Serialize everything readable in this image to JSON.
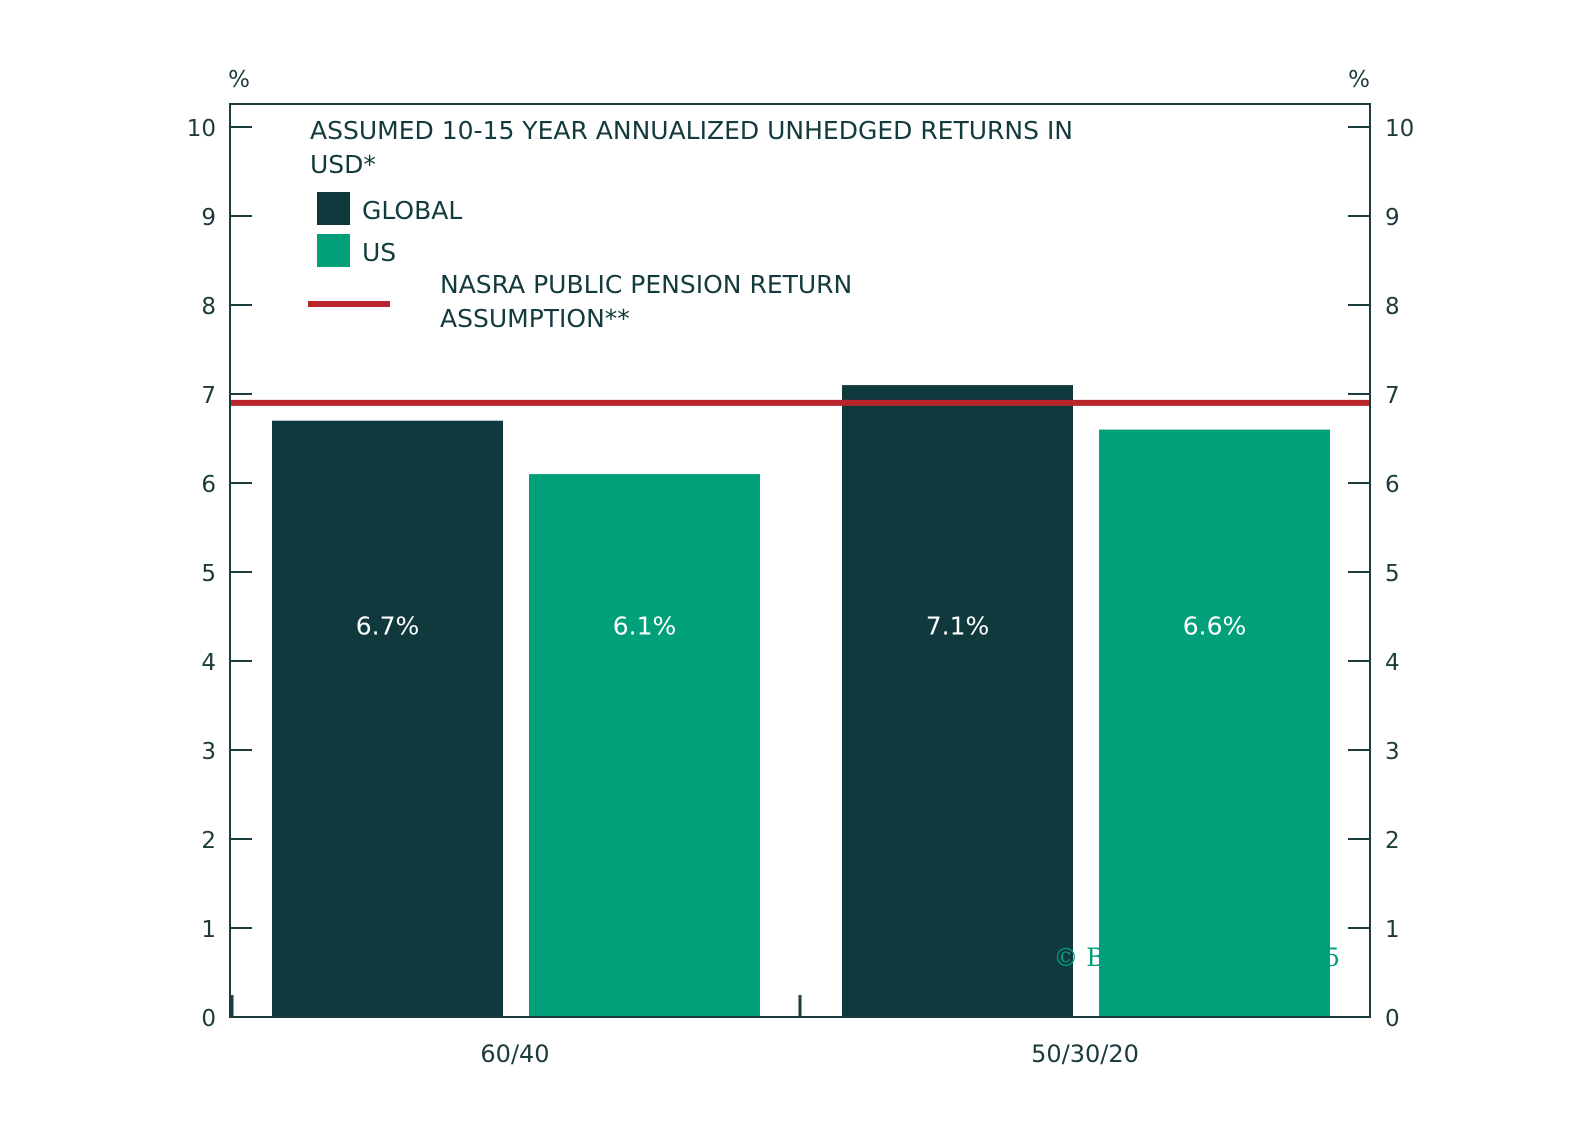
{
  "chart_data": {
    "type": "bar",
    "title_lines": [
      "ASSUMED 10-15 YEAR ANNUALIZED UNHEDGED RETURNS IN",
      "USD*"
    ],
    "categories": [
      "60/40",
      "50/30/20"
    ],
    "series": [
      {
        "name": "GLOBAL",
        "values": [
          6.7,
          7.1
        ],
        "color": "#0f393d",
        "labels": [
          "6.7%",
          "7.1%"
        ]
      },
      {
        "name": "US",
        "values": [
          6.1,
          6.6
        ],
        "color": "#02a07a",
        "labels": [
          "6.1%",
          "6.6%"
        ]
      }
    ],
    "reference_line": {
      "name_lines": [
        "NASRA PUBLIC PENSION RETURN",
        "ASSUMPTION**"
      ],
      "value": 6.9,
      "color": "#b8262c"
    },
    "ylim": [
      0,
      10
    ],
    "yticks": [
      "0",
      "1",
      "2",
      "3",
      "4",
      "5",
      "6",
      "7",
      "8",
      "9",
      "10"
    ],
    "ylabel_left": "%",
    "ylabel_right": "%",
    "grid": false,
    "legend_placement": "top-left",
    "copyright": "© BCA Research 2025"
  }
}
